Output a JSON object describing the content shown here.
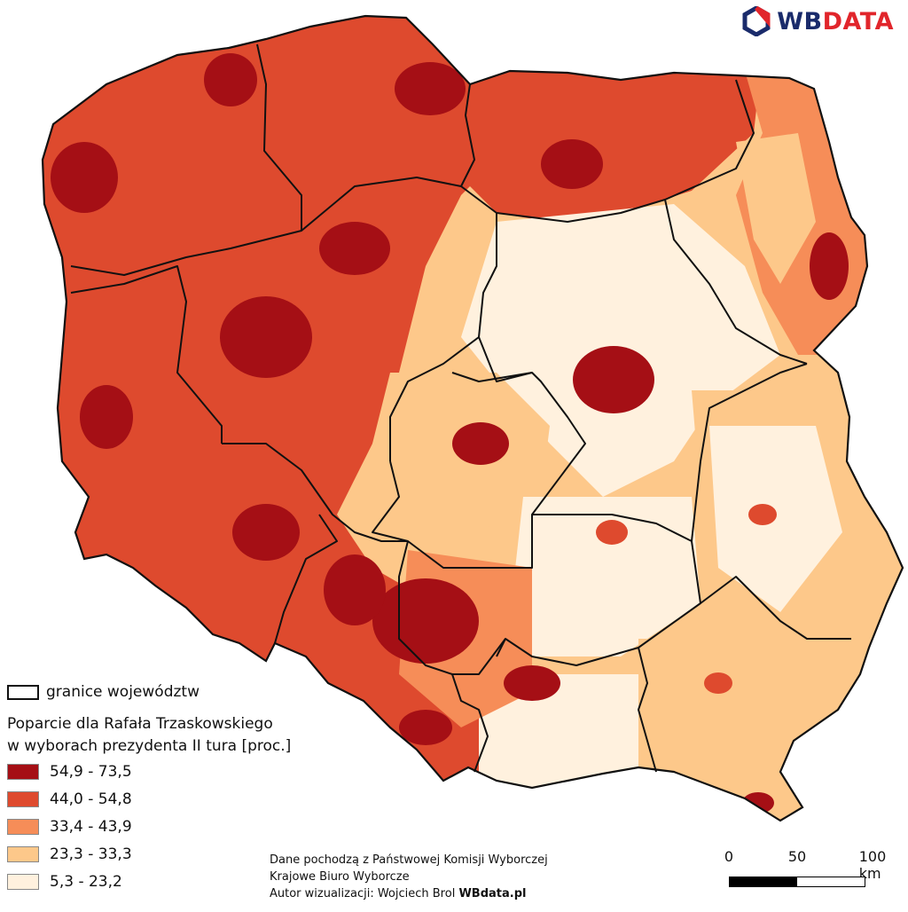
{
  "logo": {
    "part1": "WB",
    "part2": "DATA",
    "icon": "hexagon-logo-icon",
    "colors": {
      "primary": "#1a2b6b",
      "accent": "#e1252b"
    }
  },
  "legend": {
    "border_label": "granice województw",
    "title_line1": "Poparcie dla Rafała Trzaskowskiego",
    "title_line2": "w wyborach prezydenta II tura [proc.]",
    "classes": [
      {
        "label": "54,9 - 73,5",
        "color": "#a50f15"
      },
      {
        "label": "44,0 - 54,8",
        "color": "#de4a2e"
      },
      {
        "label": "33,4 - 43,9",
        "color": "#f68d58"
      },
      {
        "label": "23,3 - 33,3",
        "color": "#fdc88a"
      },
      {
        "label": "5,3 - 23,2",
        "color": "#fff1de"
      }
    ]
  },
  "source": {
    "line1": "Dane pochodzą z Państwowej Komisji Wyborczej",
    "line2": "Krajowe Biuro Wyborcze",
    "author_prefix": "Autor wizualizacji: Wojciech Brol",
    "author_site": "WBdata.pl"
  },
  "scalebar": {
    "labels": [
      "0",
      "50",
      "100 km"
    ]
  }
}
